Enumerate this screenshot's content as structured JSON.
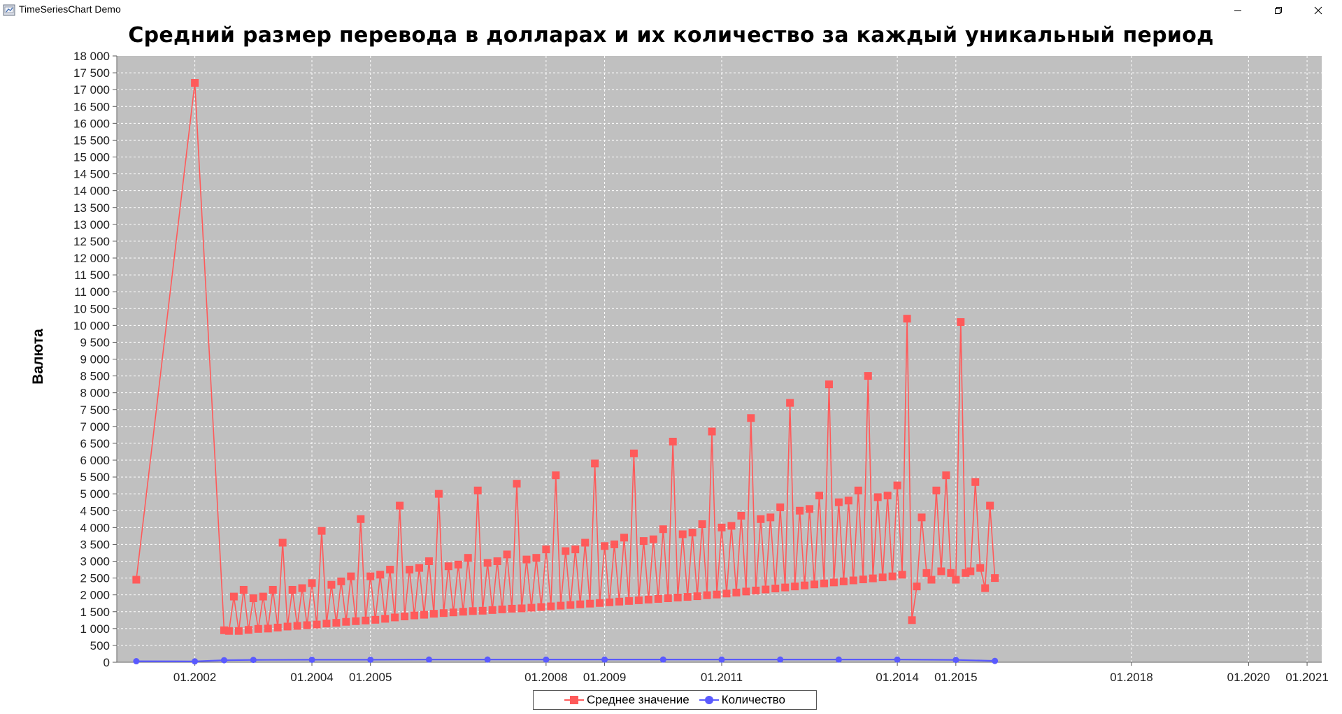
{
  "window": {
    "title": "TimeSeriesChart Demo",
    "icons": [
      "java-app-icon",
      "minimize-icon",
      "maximize-icon",
      "close-icon"
    ]
  },
  "colors": {
    "plot_background": "#c0c0c0",
    "grid": "#ffffff",
    "series_mean": "#ff5a5a",
    "series_count": "#5a5aff"
  },
  "chart_data": {
    "type": "line",
    "title": "Средний размер перевода в долларах и их количество за каждый уникальный период",
    "xlabel": "",
    "ylabel": "Валюта",
    "ylim": [
      0,
      18000
    ],
    "xlim": [
      "2000-09",
      "2021-04"
    ],
    "grid": true,
    "legend_position": "bottom",
    "y_ticks": [
      "0",
      "500",
      "1 000",
      "1 500",
      "2 000",
      "2 500",
      "3 000",
      "3 500",
      "4 000",
      "4 500",
      "5 000",
      "5 500",
      "6 000",
      "6 500",
      "7 000",
      "7 500",
      "8 000",
      "8 500",
      "9 000",
      "9 500",
      "10 000",
      "10 500",
      "11 000",
      "11 500",
      "12 000",
      "12 500",
      "13 000",
      "13 500",
      "14 000",
      "14 500",
      "15 000",
      "15 500",
      "16 000",
      "16 500",
      "17 000",
      "17 500",
      "18 000"
    ],
    "x_ticks": [
      "01.2002",
      "01.2004",
      "01.2005",
      "01.2008",
      "01.2009",
      "01.2011",
      "01.2014",
      "01.2015",
      "01.2018",
      "01.2020",
      "01.2021"
    ],
    "series": [
      {
        "name": "Среднее значение",
        "marker": "square",
        "points": [
          [
            "2001-01",
            2450
          ],
          [
            "2002-01",
            17200
          ],
          [
            "2002-07",
            950
          ],
          [
            "2002-08",
            930
          ],
          [
            "2002-09",
            1950
          ],
          [
            "2002-10",
            930
          ],
          [
            "2002-11",
            2150
          ],
          [
            "2002-12",
            960
          ],
          [
            "2003-01",
            1900
          ],
          [
            "2003-02",
            990
          ],
          [
            "2003-03",
            1950
          ],
          [
            "2003-04",
            1000
          ],
          [
            "2003-05",
            2150
          ],
          [
            "2003-06",
            1030
          ],
          [
            "2003-07",
            3550
          ],
          [
            "2003-08",
            1060
          ],
          [
            "2003-09",
            2150
          ],
          [
            "2003-10",
            1080
          ],
          [
            "2003-11",
            2200
          ],
          [
            "2003-12",
            1100
          ],
          [
            "2004-01",
            2350
          ],
          [
            "2004-02",
            1120
          ],
          [
            "2004-03",
            3900
          ],
          [
            "2004-04",
            1150
          ],
          [
            "2004-05",
            2300
          ],
          [
            "2004-06",
            1170
          ],
          [
            "2004-07",
            2400
          ],
          [
            "2004-08",
            1200
          ],
          [
            "2004-09",
            2550
          ],
          [
            "2004-10",
            1220
          ],
          [
            "2004-11",
            4250
          ],
          [
            "2004-12",
            1240
          ],
          [
            "2005-01",
            2550
          ],
          [
            "2005-02",
            1260
          ],
          [
            "2005-03",
            2600
          ],
          [
            "2005-04",
            1290
          ],
          [
            "2005-05",
            2750
          ],
          [
            "2005-06",
            1330
          ],
          [
            "2005-07",
            4650
          ],
          [
            "2005-08",
            1360
          ],
          [
            "2005-09",
            2750
          ],
          [
            "2005-10",
            1390
          ],
          [
            "2005-11",
            2800
          ],
          [
            "2005-12",
            1410
          ],
          [
            "2006-01",
            3000
          ],
          [
            "2006-02",
            1440
          ],
          [
            "2006-03",
            5000
          ],
          [
            "2006-04",
            1460
          ],
          [
            "2006-05",
            2850
          ],
          [
            "2006-06",
            1480
          ],
          [
            "2006-07",
            2900
          ],
          [
            "2006-08",
            1500
          ],
          [
            "2006-09",
            3100
          ],
          [
            "2006-10",
            1520
          ],
          [
            "2006-11",
            5100
          ],
          [
            "2006-12",
            1530
          ],
          [
            "2007-01",
            2950
          ],
          [
            "2007-02",
            1550
          ],
          [
            "2007-03",
            3000
          ],
          [
            "2007-04",
            1570
          ],
          [
            "2007-05",
            3200
          ],
          [
            "2007-06",
            1590
          ],
          [
            "2007-07",
            5300
          ],
          [
            "2007-08",
            1600
          ],
          [
            "2007-09",
            3050
          ],
          [
            "2007-10",
            1620
          ],
          [
            "2007-11",
            3100
          ],
          [
            "2007-12",
            1640
          ],
          [
            "2008-01",
            3350
          ],
          [
            "2008-02",
            1660
          ],
          [
            "2008-03",
            5550
          ],
          [
            "2008-04",
            1680
          ],
          [
            "2008-05",
            3300
          ],
          [
            "2008-06",
            1700
          ],
          [
            "2008-07",
            3350
          ],
          [
            "2008-08",
            1720
          ],
          [
            "2008-09",
            3550
          ],
          [
            "2008-10",
            1740
          ],
          [
            "2008-11",
            5900
          ],
          [
            "2008-12",
            1760
          ],
          [
            "2009-01",
            3450
          ],
          [
            "2009-02",
            1780
          ],
          [
            "2009-03",
            3500
          ],
          [
            "2009-04",
            1800
          ],
          [
            "2009-05",
            3700
          ],
          [
            "2009-06",
            1820
          ],
          [
            "2009-07",
            6200
          ],
          [
            "2009-08",
            1840
          ],
          [
            "2009-09",
            3600
          ],
          [
            "2009-10",
            1860
          ],
          [
            "2009-11",
            3650
          ],
          [
            "2009-12",
            1880
          ],
          [
            "2010-01",
            3950
          ],
          [
            "2010-02",
            1900
          ],
          [
            "2010-03",
            6550
          ],
          [
            "2010-04",
            1920
          ],
          [
            "2010-05",
            3800
          ],
          [
            "2010-06",
            1940
          ],
          [
            "2010-07",
            3850
          ],
          [
            "2010-08",
            1960
          ],
          [
            "2010-09",
            4100
          ],
          [
            "2010-10",
            1990
          ],
          [
            "2010-11",
            6850
          ],
          [
            "2010-12",
            2010
          ],
          [
            "2011-01",
            4000
          ],
          [
            "2011-02",
            2040
          ],
          [
            "2011-03",
            4050
          ],
          [
            "2011-04",
            2070
          ],
          [
            "2011-05",
            4350
          ],
          [
            "2011-06",
            2100
          ],
          [
            "2011-07",
            7250
          ],
          [
            "2011-08",
            2130
          ],
          [
            "2011-09",
            4250
          ],
          [
            "2011-10",
            2160
          ],
          [
            "2011-11",
            4300
          ],
          [
            "2011-12",
            2190
          ],
          [
            "2012-01",
            4600
          ],
          [
            "2012-02",
            2220
          ],
          [
            "2012-03",
            7700
          ],
          [
            "2012-04",
            2250
          ],
          [
            "2012-05",
            4500
          ],
          [
            "2012-06",
            2280
          ],
          [
            "2012-07",
            4550
          ],
          [
            "2012-08",
            2310
          ],
          [
            "2012-09",
            4950
          ],
          [
            "2012-10",
            2340
          ],
          [
            "2012-11",
            8250
          ],
          [
            "2012-12",
            2370
          ],
          [
            "2013-01",
            4750
          ],
          [
            "2013-02",
            2400
          ],
          [
            "2013-03",
            4800
          ],
          [
            "2013-04",
            2430
          ],
          [
            "2013-05",
            5100
          ],
          [
            "2013-06",
            2460
          ],
          [
            "2013-07",
            8500
          ],
          [
            "2013-08",
            2490
          ],
          [
            "2013-09",
            4900
          ],
          [
            "2013-10",
            2520
          ],
          [
            "2013-11",
            4950
          ],
          [
            "2013-12",
            2550
          ],
          [
            "2014-01",
            5250
          ],
          [
            "2014-02",
            2600
          ],
          [
            "2014-03",
            10200
          ],
          [
            "2014-04",
            1250
          ],
          [
            "2014-05",
            2250
          ],
          [
            "2014-06",
            4300
          ],
          [
            "2014-07",
            2650
          ],
          [
            "2014-08",
            2450
          ],
          [
            "2014-09",
            5100
          ],
          [
            "2014-10",
            2700
          ],
          [
            "2014-11",
            5550
          ],
          [
            "2014-12",
            2650
          ],
          [
            "2015-01",
            2450
          ],
          [
            "2015-02",
            10100
          ],
          [
            "2015-03",
            2650
          ],
          [
            "2015-04",
            2700
          ],
          [
            "2015-05",
            5350
          ],
          [
            "2015-06",
            2800
          ],
          [
            "2015-07",
            2200
          ],
          [
            "2015-08",
            4650
          ],
          [
            "2015-09",
            2500
          ]
        ]
      },
      {
        "name": "Количество",
        "marker": "circle",
        "points": [
          [
            "2001-01",
            30
          ],
          [
            "2002-01",
            25
          ],
          [
            "2002-07",
            60
          ],
          [
            "2003-01",
            70
          ],
          [
            "2004-01",
            75
          ],
          [
            "2005-01",
            75
          ],
          [
            "2006-01",
            80
          ],
          [
            "2007-01",
            80
          ],
          [
            "2008-01",
            80
          ],
          [
            "2009-01",
            80
          ],
          [
            "2010-01",
            80
          ],
          [
            "2011-01",
            80
          ],
          [
            "2012-01",
            80
          ],
          [
            "2013-01",
            80
          ],
          [
            "2014-01",
            80
          ],
          [
            "2015-01",
            70
          ],
          [
            "2015-09",
            40
          ]
        ]
      }
    ]
  }
}
